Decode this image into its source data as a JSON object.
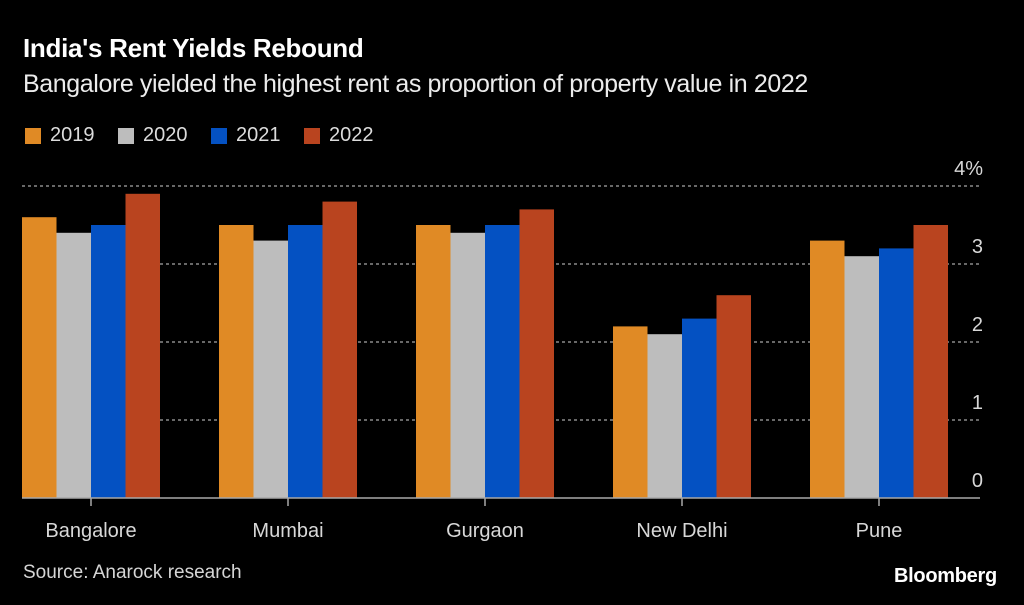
{
  "header": {
    "title": "India's Rent Yields Rebound",
    "subtitle": "Bangalore yielded the highest rent as proportion of property value in 2022"
  },
  "footer": {
    "source": "Source: Anarock research",
    "logo": "Bloomberg"
  },
  "chart_data": {
    "type": "bar",
    "title": "India's Rent Yields Rebound",
    "subtitle": "Bangalore yielded the highest rent as proportion of property value in 2022",
    "xlabel": "",
    "ylabel": "",
    "categories": [
      "Bangalore",
      "Mumbai",
      "Gurgaon",
      "New Delhi",
      "Pune"
    ],
    "series": [
      {
        "name": "2019",
        "color": "#e08a25",
        "values": [
          3.6,
          3.5,
          3.5,
          2.2,
          3.3
        ]
      },
      {
        "name": "2020",
        "color": "#bdbdbd",
        "values": [
          3.4,
          3.3,
          3.4,
          2.1,
          3.1
        ]
      },
      {
        "name": "2021",
        "color": "#0451c2",
        "values": [
          3.5,
          3.5,
          3.5,
          2.3,
          3.2
        ]
      },
      {
        "name": "2022",
        "color": "#b9441f",
        "values": [
          3.9,
          3.8,
          3.7,
          2.6,
          3.5
        ]
      }
    ],
    "ylim": [
      0,
      4
    ],
    "yticks": [
      0,
      1,
      2,
      3,
      4
    ],
    "ytick_labels": [
      "0",
      "1",
      "2",
      "3",
      "4%"
    ],
    "y_axis_side": "right",
    "grid": true,
    "legend_position": "top-left",
    "source": "Source: Anarock research"
  }
}
